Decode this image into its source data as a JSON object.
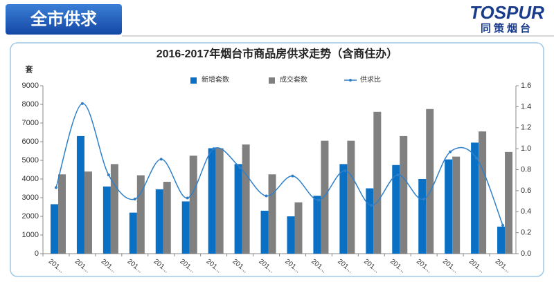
{
  "header": {
    "title": "全市供求"
  },
  "logo": {
    "brand": "TOSPUR",
    "sub": "同策烟台"
  },
  "chart_data": {
    "type": "bar",
    "title": "2016-2017年烟台市商品房供求走势（含商住办）",
    "y_label": "套",
    "categories": [
      "201...",
      "201...",
      "201...",
      "201...",
      "201...",
      "201...",
      "201...",
      "201...",
      "201...",
      "201...",
      "201...",
      "201...",
      "201...",
      "201...",
      "201...",
      "201...",
      "201...",
      "201..."
    ],
    "series": [
      {
        "name": "新增套数",
        "color": "#0a70c4",
        "values": [
          2650,
          6300,
          3600,
          2200,
          3450,
          2800,
          5650,
          4800,
          2300,
          2000,
          3100,
          4800,
          3500,
          4750,
          4000,
          5050,
          5950,
          1450
        ]
      },
      {
        "name": "成交套数",
        "color": "#808080",
        "values": [
          4250,
          4400,
          4800,
          4200,
          3850,
          5250,
          5650,
          5850,
          4250,
          2750,
          6050,
          6050,
          7600,
          6300,
          7750,
          5200,
          6550,
          5450
        ]
      },
      {
        "name": "供求比",
        "type": "line",
        "axis": "y2",
        "color": "#2e7fc9",
        "values": [
          0.63,
          1.43,
          0.75,
          0.52,
          0.9,
          0.53,
          1.0,
          0.82,
          0.55,
          0.74,
          0.51,
          0.79,
          0.46,
          0.75,
          0.52,
          0.97,
          0.91,
          0.27
        ]
      }
    ],
    "ylim": [
      0,
      9000
    ],
    "yticks": [
      0,
      1000,
      2000,
      3000,
      4000,
      5000,
      6000,
      7000,
      8000,
      9000
    ],
    "y2lim": [
      0,
      1.6
    ],
    "y2ticks": [
      {
        "value": 0,
        "label": "0.0"
      },
      0.2,
      0.4,
      0.6,
      0.8,
      {
        "value": 1,
        "label": "1.0"
      },
      1.2,
      1.4,
      1.6
    ],
    "legend": "top"
  }
}
